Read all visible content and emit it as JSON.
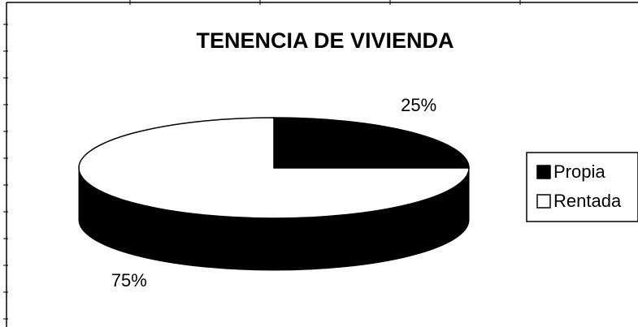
{
  "chart_data": {
    "type": "pie",
    "title": "TENENCIA DE VIVIENDA",
    "categories": [
      "Propia",
      "Rentada"
    ],
    "values": [
      25,
      75
    ],
    "value_labels": [
      "25%",
      "75%"
    ],
    "colors": [
      "#000000",
      "#ffffff"
    ],
    "legend": "right",
    "three_d": true
  }
}
